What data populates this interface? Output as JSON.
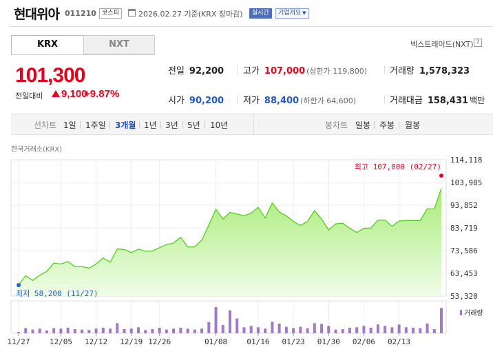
{
  "header": {
    "name": "현대위아",
    "code": "011210",
    "market_badge": "코스피",
    "date_text": "2026.02.27 기준(KRX 장마감)",
    "realtime_badge": "실시간",
    "company_button": "기업개요",
    "company_button_chevron": "chevron-down-icon",
    "calendar_icon": "calendar-icon"
  },
  "tabs": {
    "krx": "KRX",
    "nxt": "NXT",
    "nxt_link": "넥스트레이드(NXT)",
    "help_icon_glyph": "?"
  },
  "price": {
    "current": "101,300",
    "change_label": "전일대비",
    "change_amount": "9,100",
    "change_pct": "+9.87%",
    "direction_icon": "up-triangle-icon",
    "color_up": "#e5001e"
  },
  "summary": {
    "prev_close_label": "전일",
    "prev_close": "92,200",
    "high_label": "고가",
    "high": "107,000",
    "upper_limit": "(상한가 119,800)",
    "volume_label": "거래량",
    "volume": "1,578,323",
    "open_label": "시가",
    "open": "90,200",
    "low_label": "저가",
    "low": "88,400",
    "lower_limit": "(하한가 64,600)",
    "amount_label": "거래대금",
    "amount": "158,431",
    "amount_unit": "백만"
  },
  "period_bar": {
    "line_label": "선차트",
    "line_options": [
      "1일",
      "1주일",
      "3개월",
      "1년",
      "3년",
      "5년",
      "10년"
    ],
    "active": "3개월",
    "candle_label": "봉차트",
    "candle_options": [
      "일봉",
      "주봉",
      "월봉"
    ]
  },
  "chart_source": "한국거래소(KRX)",
  "chart_data": {
    "type": "area",
    "series": [
      {
        "values": [
          58200,
          62400,
          60300,
          62600,
          64300,
          68000,
          67600,
          68700,
          66400,
          66400,
          65800,
          67600,
          70300,
          68400,
          74300,
          74100,
          72700,
          74200,
          73300,
          73400,
          74900,
          76300,
          77000,
          79500,
          75200,
          75200,
          78300,
          85000,
          92000,
          87700,
          90600,
          89900,
          89200,
          90300,
          92900,
          88100,
          94800,
          90800,
          89100,
          86600,
          84800,
          86600,
          91400,
          87700,
          82800,
          85500,
          85800,
          83500,
          81700,
          83500,
          83700,
          87200,
          87200,
          84400,
          86800,
          87000,
          87000,
          87000,
          92200,
          92200,
          101300
        ]
      },
      {
        "name": "거래량",
        "values": [
          3,
          11,
          8,
          10,
          6,
          11,
          10,
          12,
          9,
          8,
          7,
          10,
          12,
          10,
          22,
          9,
          10,
          13,
          7,
          9,
          12,
          8,
          10,
          12,
          10,
          8,
          10,
          24,
          57,
          18,
          50,
          32,
          13,
          16,
          13,
          10,
          25,
          21,
          14,
          11,
          14,
          11,
          22,
          20,
          16,
          8,
          9,
          12,
          13,
          16,
          12,
          19,
          16,
          13,
          19,
          13,
          12,
          11,
          21,
          9,
          55
        ]
      }
    ],
    "ylim": [
      53320,
      114118
    ],
    "y_ticks": [
      "114,118",
      "103,985",
      "93,852",
      "83,719",
      "73,586",
      "63,453",
      "53,320"
    ],
    "x_ticks": [
      {
        "label": "11/27",
        "index": 0
      },
      {
        "label": "12/05",
        "index": 6
      },
      {
        "label": "12/12",
        "index": 11
      },
      {
        "label": "12/19",
        "index": 16
      },
      {
        "label": "12/26",
        "index": 20
      },
      {
        "label": "01/08",
        "index": 28
      },
      {
        "label": "01/16",
        "index": 34
      },
      {
        "label": "01/23",
        "index": 39
      },
      {
        "label": "01/30",
        "index": 44
      },
      {
        "label": "02/06",
        "index": 49
      },
      {
        "label": "02/13",
        "index": 54
      }
    ],
    "max": {
      "label": "최고 107,000 (02/27)",
      "value": 107000,
      "index": 60
    },
    "min": {
      "label": "최저 58,200 (11/27)",
      "value": 58200,
      "index": 0
    },
    "volume_label": "거래량",
    "colors": {
      "line": "#55cc22",
      "fill_top": "#a8ec78",
      "fill_bottom": "#f1fde9",
      "max_dot": "#e5001e",
      "min_dot": "#1f63c6",
      "volume": "#a27ac4"
    }
  }
}
